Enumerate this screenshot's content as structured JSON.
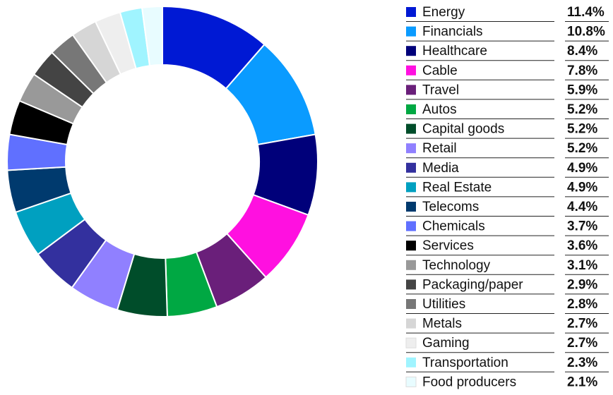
{
  "chart_data": {
    "type": "donut",
    "categories": [
      "Energy",
      "Financials",
      "Healthcare",
      "Cable",
      "Travel",
      "Autos",
      "Capital goods",
      "Retail",
      "Media",
      "Real Estate",
      "Telecoms",
      "Chemicals",
      "Services",
      "Technology",
      "Packaging/paper",
      "Utilities",
      "Metals",
      "Gaming",
      "Transportation",
      "Food producers"
    ],
    "values": [
      11.4,
      10.8,
      8.4,
      7.8,
      5.9,
      5.2,
      5.2,
      5.2,
      4.9,
      4.9,
      4.4,
      3.7,
      3.6,
      3.1,
      2.9,
      2.8,
      2.7,
      2.7,
      2.3,
      2.1
    ],
    "value_labels": [
      "11.4%",
      "10.8%",
      "8.4%",
      "7.8%",
      "5.9%",
      "5.2%",
      "5.2%",
      "5.2%",
      "4.9%",
      "4.9%",
      "4.4%",
      "3.7%",
      "3.6%",
      "3.1%",
      "2.9%",
      "2.8%",
      "2.7%",
      "2.7%",
      "2.3%",
      "2.1%"
    ],
    "colors": [
      "#0019d4",
      "#0a9bff",
      "#00007a",
      "#ff10e0",
      "#6a1f7a",
      "#00a843",
      "#004d2a",
      "#9080ff",
      "#33309e",
      "#00a0c0",
      "#003a6e",
      "#6070ff",
      "#000000",
      "#999999",
      "#444444",
      "#777777",
      "#d6d6d6",
      "#eeeeee",
      "#a0f4ff",
      "#e8fcff"
    ]
  }
}
